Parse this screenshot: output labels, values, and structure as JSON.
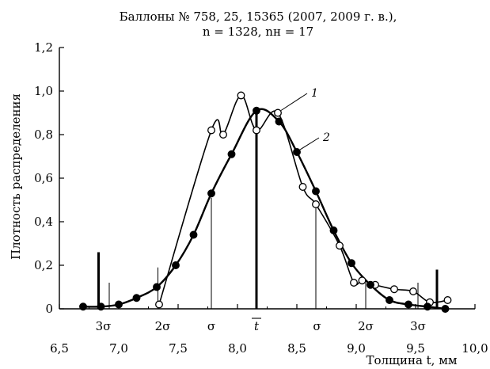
{
  "chart_data": {
    "type": "line",
    "title_line1": "Баллоны № 758, 25, 15365 (2007, 2009 г. в.),",
    "title_line2": "n = 1328, nн = 17",
    "xlabel": "Толщина t, мм",
    "ylabel": "Плотность распределения",
    "xlim": [
      6.5,
      10.0
    ],
    "ylim": [
      0,
      1.2
    ],
    "x_ticks": [
      "6,5",
      "7,0",
      "7,5",
      "8,0",
      "8,5",
      "9,0",
      "9,5",
      "10,0"
    ],
    "y_ticks": [
      "0",
      "0,2",
      "0,4",
      "0,6",
      "0,8",
      "1,0",
      "1,2"
    ],
    "sigma_labels": [
      "3σ",
      "2σ",
      "σ",
      "t",
      "σ",
      "2σ",
      "3σ"
    ],
    "series": [
      {
        "name": "1",
        "marker": "open-circle",
        "x": [
          7.34,
          7.78,
          7.88,
          8.03,
          8.16,
          8.34,
          8.55,
          8.66,
          8.86,
          8.98,
          9.05,
          9.16,
          9.32,
          9.48,
          9.62,
          9.77
        ],
        "y": [
          0.02,
          0.82,
          0.8,
          0.98,
          0.82,
          0.9,
          0.56,
          0.48,
          0.29,
          0.12,
          0.13,
          0.11,
          0.09,
          0.08,
          0.03,
          0.04
        ]
      },
      {
        "name": "2",
        "marker": "filled-circle",
        "x": [
          6.7,
          6.85,
          7.0,
          7.15,
          7.32,
          7.48,
          7.63,
          7.78,
          7.95,
          8.16,
          8.35,
          8.5,
          8.66,
          8.81,
          8.96,
          9.12,
          9.28,
          9.44,
          9.6,
          9.75
        ],
        "y": [
          0.01,
          0.01,
          0.02,
          0.05,
          0.1,
          0.2,
          0.34,
          0.53,
          0.71,
          0.91,
          0.86,
          0.72,
          0.54,
          0.36,
          0.21,
          0.11,
          0.04,
          0.02,
          0.01,
          0.0
        ]
      }
    ],
    "vertical_markers": [
      {
        "x": 6.83,
        "y": 0.26,
        "weight": "bold"
      },
      {
        "x": 6.92,
        "y": 0.12,
        "weight": "thin"
      },
      {
        "x": 7.33,
        "y": 0.19,
        "weight": "thin"
      },
      {
        "x": 7.78,
        "y": 0.51,
        "weight": "thin"
      },
      {
        "x": 8.16,
        "y": 0.91,
        "weight": "bold"
      },
      {
        "x": 8.66,
        "y": 0.47,
        "weight": "thin"
      },
      {
        "x": 9.08,
        "y": 0.12,
        "weight": "thin"
      },
      {
        "x": 9.52,
        "y": 0.12,
        "weight": "thin"
      },
      {
        "x": 9.68,
        "y": 0.18,
        "weight": "bold"
      }
    ],
    "grid": false,
    "legend": "inline-labels"
  }
}
